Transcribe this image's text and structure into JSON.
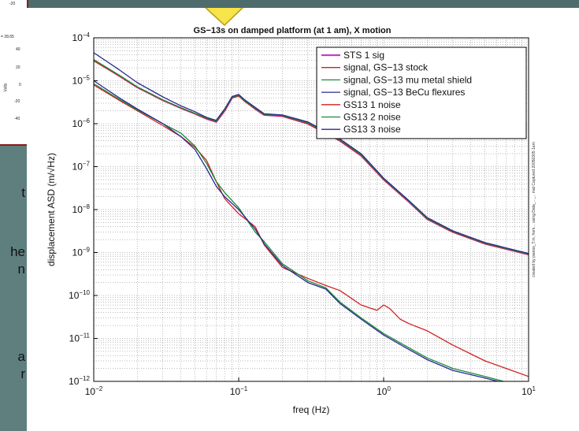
{
  "left_fragments": {
    "mini_labels": [
      "-20",
      "= 28.65",
      "Volts",
      "-20",
      "-40"
    ],
    "mini_ticks": [
      "40",
      "20",
      "0",
      "40"
    ],
    "side_text": [
      "t",
      "he",
      "n",
      "a",
      "r"
    ]
  },
  "colors": {
    "background": "#5f7f7f",
    "frame": "#8a1a1a",
    "arrow": "#f7e34a",
    "sts": "#c040c0",
    "stock": "#d02020",
    "mu_metal": "#1a8a3a",
    "becu": "#2a2a90"
  },
  "side_caption": "created by pianos_T.m, from...  using Data_..._.. mat Captured 20050305 1am",
  "chart_data": {
    "type": "line",
    "title": "GS−13s on damped platform (at 1 am), X motion",
    "xlabel": "freq (Hz)",
    "ylabel": "displacement ASD (m/√Hz)",
    "xscale": "log",
    "yscale": "log",
    "xlim": [
      0.01,
      10
    ],
    "ylim": [
      1e-12,
      0.0001
    ],
    "grid": true,
    "legend_position": "top-right",
    "xticks": [
      {
        "value": 0.01,
        "base": "10",
        "exp": "−2"
      },
      {
        "value": 0.1,
        "base": "10",
        "exp": "−1"
      },
      {
        "value": 1,
        "base": "10",
        "exp": "0"
      },
      {
        "value": 10,
        "base": "10",
        "exp": "1"
      }
    ],
    "yticks": [
      {
        "value": 1e-12,
        "base": "10",
        "exp": "−12"
      },
      {
        "value": 1e-11,
        "base": "10",
        "exp": "−11"
      },
      {
        "value": 1e-10,
        "base": "10",
        "exp": "−10"
      },
      {
        "value": 1e-09,
        "base": "10",
        "exp": "−9"
      },
      {
        "value": 1e-08,
        "base": "10",
        "exp": "−8"
      },
      {
        "value": 1e-07,
        "base": "10",
        "exp": "−7"
      },
      {
        "value": 1e-06,
        "base": "10",
        "exp": "−6"
      },
      {
        "value": 1e-05,
        "base": "10",
        "exp": "−5"
      },
      {
        "value": 0.0001,
        "base": "10",
        "exp": "−4"
      }
    ],
    "series": [
      {
        "name": "STS 1 sig",
        "color": "#c040c0",
        "width": 2.2,
        "points": [
          [
            0.01,
            3e-05
          ],
          [
            0.015,
            1.3e-05
          ],
          [
            0.02,
            7e-06
          ],
          [
            0.03,
            3.5e-06
          ],
          [
            0.04,
            2.3e-06
          ],
          [
            0.05,
            1.7e-06
          ],
          [
            0.06,
            1.3e-06
          ],
          [
            0.07,
            1.1e-06
          ],
          [
            0.08,
            2e-06
          ],
          [
            0.09,
            4e-06
          ],
          [
            0.1,
            4.5e-06
          ],
          [
            0.11,
            3.4e-06
          ],
          [
            0.13,
            2.2e-06
          ],
          [
            0.15,
            1.6e-06
          ],
          [
            0.2,
            1.5e-06
          ],
          [
            0.3,
            1e-06
          ],
          [
            0.4,
            6e-07
          ],
          [
            0.5,
            4e-07
          ],
          [
            0.7,
            1.8e-07
          ],
          [
            1,
            5e-08
          ],
          [
            1.5,
            1.5e-08
          ],
          [
            2,
            6e-09
          ],
          [
            3,
            3e-09
          ],
          [
            5,
            1.6e-09
          ],
          [
            10,
            9e-10
          ]
        ]
      },
      {
        "name": "signal, GS−13 stock",
        "color": "#d02020",
        "width": 1.3,
        "points": [
          [
            0.01,
            2.9e-05
          ],
          [
            0.015,
            1.3e-05
          ],
          [
            0.02,
            7e-06
          ],
          [
            0.03,
            3.5e-06
          ],
          [
            0.04,
            2.3e-06
          ],
          [
            0.05,
            1.7e-06
          ],
          [
            0.06,
            1.3e-06
          ],
          [
            0.07,
            1.1e-06
          ],
          [
            0.08,
            2e-06
          ],
          [
            0.09,
            4e-06
          ],
          [
            0.1,
            4.4e-06
          ],
          [
            0.11,
            3.3e-06
          ],
          [
            0.13,
            2.2e-06
          ],
          [
            0.15,
            1.6e-06
          ],
          [
            0.2,
            1.5e-06
          ],
          [
            0.3,
            1e-06
          ],
          [
            0.4,
            6e-07
          ],
          [
            0.5,
            4e-07
          ],
          [
            0.7,
            1.8e-07
          ],
          [
            1,
            5e-08
          ],
          [
            1.5,
            1.5e-08
          ],
          [
            2,
            6e-09
          ],
          [
            3,
            3e-09
          ],
          [
            5,
            1.6e-09
          ],
          [
            10,
            9e-10
          ]
        ]
      },
      {
        "name": "signal, GS−13 mu metal shield",
        "color": "#1a8a3a",
        "width": 1.3,
        "points": [
          [
            0.01,
            3.1e-05
          ],
          [
            0.015,
            1.35e-05
          ],
          [
            0.02,
            7.2e-06
          ],
          [
            0.03,
            3.6e-06
          ],
          [
            0.04,
            2.35e-06
          ],
          [
            0.05,
            1.75e-06
          ],
          [
            0.06,
            1.35e-06
          ],
          [
            0.07,
            1.15e-06
          ],
          [
            0.08,
            2.1e-06
          ],
          [
            0.09,
            4.1e-06
          ],
          [
            0.1,
            4.6e-06
          ],
          [
            0.11,
            3.4e-06
          ],
          [
            0.13,
            2.3e-06
          ],
          [
            0.15,
            1.65e-06
          ],
          [
            0.2,
            1.55e-06
          ],
          [
            0.3,
            1.05e-06
          ],
          [
            0.4,
            6.2e-07
          ],
          [
            0.5,
            4.2e-07
          ],
          [
            0.7,
            1.9e-07
          ],
          [
            1,
            5.2e-08
          ],
          [
            1.5,
            1.55e-08
          ],
          [
            2,
            6.2e-09
          ],
          [
            3,
            3.1e-09
          ],
          [
            5,
            1.65e-09
          ],
          [
            10,
            9.2e-10
          ]
        ]
      },
      {
        "name": "signal, GS−13 BeCu flexures",
        "color": "#2a2a90",
        "width": 1.3,
        "points": [
          [
            0.01,
            4.5e-05
          ],
          [
            0.015,
            1.8e-05
          ],
          [
            0.02,
            9e-06
          ],
          [
            0.03,
            4.2e-06
          ],
          [
            0.04,
            2.6e-06
          ],
          [
            0.05,
            1.9e-06
          ],
          [
            0.06,
            1.4e-06
          ],
          [
            0.07,
            1.2e-06
          ],
          [
            0.08,
            2.2e-06
          ],
          [
            0.09,
            4.3e-06
          ],
          [
            0.1,
            4.8e-06
          ],
          [
            0.11,
            3.6e-06
          ],
          [
            0.13,
            2.4e-06
          ],
          [
            0.15,
            1.7e-06
          ],
          [
            0.2,
            1.6e-06
          ],
          [
            0.3,
            1.1e-06
          ],
          [
            0.4,
            6.5e-07
          ],
          [
            0.5,
            4.4e-07
          ],
          [
            0.7,
            2e-07
          ],
          [
            1,
            5.4e-08
          ],
          [
            1.5,
            1.6e-08
          ],
          [
            2,
            6.5e-09
          ],
          [
            3,
            3.2e-09
          ],
          [
            5,
            1.7e-09
          ],
          [
            10,
            9.5e-10
          ]
        ]
      },
      {
        "name": "GS13 1 noise",
        "color": "#d02020",
        "width": 1.3,
        "points": [
          [
            0.01,
            8e-06
          ],
          [
            0.015,
            3.5e-06
          ],
          [
            0.02,
            2e-06
          ],
          [
            0.03,
            9e-07
          ],
          [
            0.04,
            5e-07
          ],
          [
            0.05,
            2.8e-07
          ],
          [
            0.06,
            1.4e-07
          ],
          [
            0.07,
            4.5e-08
          ],
          [
            0.08,
            1.8e-08
          ],
          [
            0.1,
            8e-09
          ],
          [
            0.13,
            4e-09
          ],
          [
            0.15,
            1.5e-09
          ],
          [
            0.2,
            4.5e-10
          ],
          [
            0.3,
            2.5e-10
          ],
          [
            0.4,
            1.7e-10
          ],
          [
            0.5,
            1.3e-10
          ],
          [
            0.7,
            6e-11
          ],
          [
            0.9,
            4.5e-11
          ],
          [
            1,
            6e-11
          ],
          [
            1.1,
            5e-11
          ],
          [
            1.3,
            2.8e-11
          ],
          [
            1.5,
            2.2e-11
          ],
          [
            2,
            1.5e-11
          ],
          [
            3,
            7e-12
          ],
          [
            5,
            3e-12
          ],
          [
            7,
            2e-12
          ],
          [
            10,
            1.3e-12
          ]
        ]
      },
      {
        "name": "GS13 2 noise",
        "color": "#1a8a3a",
        "width": 1.3,
        "points": [
          [
            0.01,
            8.5e-06
          ],
          [
            0.015,
            3.7e-06
          ],
          [
            0.02,
            2.1e-06
          ],
          [
            0.03,
            1e-06
          ],
          [
            0.04,
            6e-07
          ],
          [
            0.05,
            3e-07
          ],
          [
            0.06,
            1.2e-07
          ],
          [
            0.07,
            4.5e-08
          ],
          [
            0.08,
            2.5e-08
          ],
          [
            0.1,
            1.1e-08
          ],
          [
            0.13,
            3e-09
          ],
          [
            0.15,
            1.8e-09
          ],
          [
            0.2,
            5.5e-10
          ],
          [
            0.3,
            2.2e-10
          ],
          [
            0.4,
            1.5e-10
          ],
          [
            0.5,
            7e-11
          ],
          [
            0.7,
            3e-11
          ],
          [
            1,
            1.3e-11
          ],
          [
            1.5,
            6e-12
          ],
          [
            2,
            3.5e-12
          ],
          [
            3,
            2e-12
          ],
          [
            5,
            1.3e-12
          ],
          [
            10,
            7e-13
          ]
        ]
      },
      {
        "name": "GS13 3 noise",
        "color": "#2a2a90",
        "width": 1.3,
        "points": [
          [
            0.01,
            1e-05
          ],
          [
            0.015,
            4e-06
          ],
          [
            0.02,
            2.2e-06
          ],
          [
            0.03,
            1e-06
          ],
          [
            0.04,
            5e-07
          ],
          [
            0.05,
            2.5e-07
          ],
          [
            0.06,
            9e-08
          ],
          [
            0.07,
            3.5e-08
          ],
          [
            0.08,
            2e-08
          ],
          [
            0.1,
            1e-08
          ],
          [
            0.13,
            3.5e-09
          ],
          [
            0.15,
            1.6e-09
          ],
          [
            0.2,
            5e-10
          ],
          [
            0.3,
            2e-10
          ],
          [
            0.4,
            1.4e-10
          ],
          [
            0.5,
            6.5e-11
          ],
          [
            0.7,
            2.8e-11
          ],
          [
            1,
            1.2e-11
          ],
          [
            1.5,
            5.5e-12
          ],
          [
            2,
            3.2e-12
          ],
          [
            3,
            1.8e-12
          ],
          [
            5,
            1.2e-12
          ],
          [
            10,
            6.5e-13
          ]
        ]
      }
    ]
  }
}
